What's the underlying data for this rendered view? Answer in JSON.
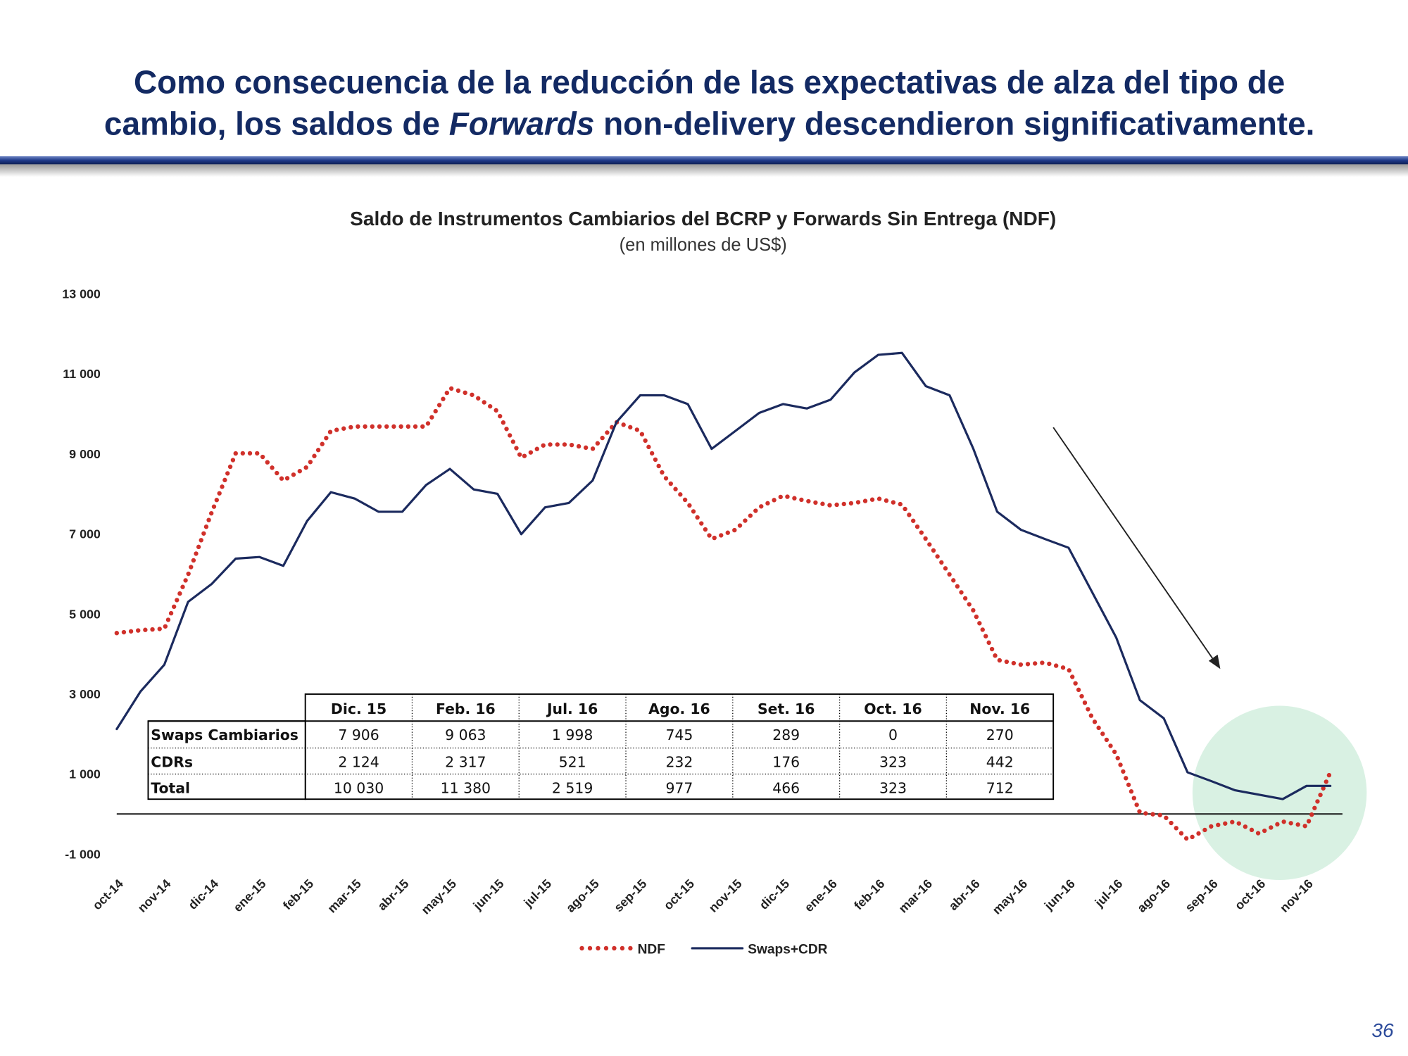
{
  "header": {
    "title_line1": "Como consecuencia de la reducción de las expectativas de alza del tipo de",
    "title_line2_a": "cambio, los saldos de ",
    "title_line2_b": "Forwards",
    "title_line2_c": " non-delivery descendieron significativamente."
  },
  "chart_data": {
    "type": "line",
    "title": "Saldo de Instrumentos Cambiarios del BCRP y Forwards Sin Entrega (NDF)",
    "subtitle": "(en millones de US$)",
    "categories": [
      "oct-14",
      null,
      "nov-14",
      null,
      "dic-14",
      null,
      "ene-15",
      null,
      "feb-15",
      null,
      "mar-15",
      null,
      "abr-15",
      null,
      "may-15",
      null,
      "jun-15",
      null,
      "jul-15",
      null,
      "ago-15",
      null,
      "sep-15",
      null,
      "oct-15",
      null,
      "nov-15",
      null,
      "dic-15",
      null,
      "ene-16",
      null,
      "feb-16",
      null,
      "mar-16",
      null,
      "abr-16",
      null,
      "may-16",
      null,
      "jun-16",
      null,
      "jul-16",
      null,
      "ago-16",
      null,
      "sep-16",
      null,
      "oct-16",
      null,
      "nov-16",
      null
    ],
    "series": [
      {
        "name": "NDF",
        "color": "#d0302a",
        "style": "dotted",
        "values": [
          4520,
          4590,
          4630,
          5980,
          7550,
          9010,
          9010,
          8330,
          8670,
          9570,
          9680,
          9680,
          9680,
          9680,
          10640,
          10460,
          10060,
          8900,
          9230,
          9230,
          9120,
          9790,
          9570,
          8440,
          7770,
          6870,
          7100,
          7660,
          7950,
          7820,
          7710,
          7770,
          7880,
          7730,
          6870,
          5980,
          5080,
          3850,
          3730,
          3780,
          3620,
          2390,
          1490,
          30,
          -40,
          -640,
          -310,
          -190,
          -490,
          -190,
          -310,
          1040
        ]
      },
      {
        "name": "Swaps+CDR",
        "color": "#1b2a5e",
        "style": "solid",
        "values": [
          2120,
          3060,
          3730,
          5300,
          5750,
          6380,
          6420,
          6200,
          7320,
          8040,
          7880,
          7550,
          7550,
          8220,
          8620,
          8110,
          8000,
          6990,
          7660,
          7770,
          8330,
          9790,
          10460,
          10460,
          10240,
          9120,
          9570,
          10020,
          10240,
          10130,
          10350,
          11030,
          11470,
          11520,
          10690,
          10460,
          9120,
          7550,
          7100,
          6870,
          6650,
          5530,
          4410,
          2840,
          2390,
          1040,
          820,
          590,
          480,
          370,
          700,
          700
        ]
      }
    ],
    "ylim": [
      -1000,
      13000
    ],
    "yticks": [
      {
        "value": -1000,
        "label": "-1 000"
      },
      {
        "value": 1000,
        "label": "1 000"
      },
      {
        "value": 3000,
        "label": "3 000"
      },
      {
        "value": 5000,
        "label": "5 000"
      },
      {
        "value": 7000,
        "label": "7 000"
      },
      {
        "value": 9000,
        "label": "9 000"
      },
      {
        "value": 11000,
        "label": "11 000"
      },
      {
        "value": 13000,
        "label": "13 000"
      }
    ],
    "zero_line": 0,
    "legend": "bottom"
  },
  "table": {
    "columns": [
      "Dic. 15",
      "Feb. 16",
      "Jul. 16",
      "Ago. 16",
      "Set. 16",
      "Oct. 16",
      "Nov. 16"
    ],
    "rows": [
      {
        "label": "Swaps Cambiarios",
        "values": [
          "7 906",
          "9 063",
          "1 998",
          "745",
          "289",
          "0",
          "270"
        ]
      },
      {
        "label": "CDRs",
        "values": [
          "2 124",
          "2 317",
          "521",
          "232",
          "176",
          "323",
          "442"
        ]
      },
      {
        "label": "Total",
        "values": [
          "10 030",
          "11 380",
          "2 519",
          "977",
          "466",
          "323",
          "712"
        ]
      }
    ]
  },
  "page_number": "36"
}
